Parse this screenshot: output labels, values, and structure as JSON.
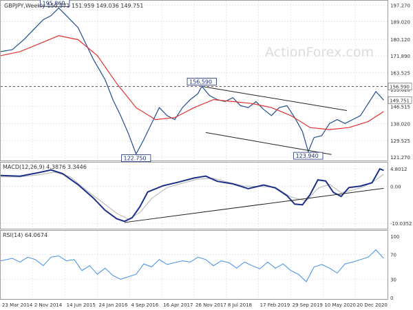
{
  "header": {
    "symbol_line": "GBPJPY,Weekly 150.371 151.959 149.036 149.751",
    "watermark": "ActionForex.com"
  },
  "colors": {
    "price": "#1f4e8c",
    "ma": "#e03030",
    "macd": "#1b2f88",
    "signal": "#bdbdbd",
    "rsi": "#3f8ee8",
    "grid": "#d7d7d7",
    "text": "#333333",
    "trend": "#222222"
  },
  "chart_data": [
    {
      "type": "line",
      "name": "price-panel",
      "title": "GBPJPY,Weekly 150.371 151.959 149.036 149.751",
      "y_ticks": [
        121.27,
        129.525,
        138.02,
        146.515,
        155.02,
        163.525,
        171.89,
        180.12,
        189.02,
        197.27
      ],
      "ylim": [
        119.5,
        199.5
      ],
      "dashed_level": 156.59,
      "last_price": 149.751,
      "annotations": [
        {
          "label": "195.860",
          "value": 195.86,
          "t": 0.14
        },
        {
          "label": "122.750",
          "value": 122.75,
          "t": 0.35
        },
        {
          "label": "156.590",
          "value": 156.59,
          "t": 0.52
        },
        {
          "label": "123.940",
          "value": 123.94,
          "t": 0.795
        }
      ],
      "axis_labels": [
        "156.590",
        "149.751"
      ],
      "price_path": [
        [
          0.0,
          174
        ],
        [
          0.03,
          175
        ],
        [
          0.06,
          180
        ],
        [
          0.09,
          186
        ],
        [
          0.11,
          190
        ],
        [
          0.13,
          192
        ],
        [
          0.15,
          195.86
        ],
        [
          0.17,
          192
        ],
        [
          0.2,
          186
        ],
        [
          0.22,
          178
        ],
        [
          0.24,
          170
        ],
        [
          0.27,
          160
        ],
        [
          0.29,
          150
        ],
        [
          0.31,
          142
        ],
        [
          0.33,
          133
        ],
        [
          0.35,
          122.75
        ],
        [
          0.37,
          130
        ],
        [
          0.39,
          138
        ],
        [
          0.41,
          146
        ],
        [
          0.43,
          142
        ],
        [
          0.45,
          140
        ],
        [
          0.47,
          146
        ],
        [
          0.49,
          150
        ],
        [
          0.51,
          153
        ],
        [
          0.52,
          156.59
        ],
        [
          0.54,
          152
        ],
        [
          0.56,
          150
        ],
        [
          0.58,
          149
        ],
        [
          0.6,
          151
        ],
        [
          0.62,
          147
        ],
        [
          0.64,
          146
        ],
        [
          0.66,
          149
        ],
        [
          0.68,
          145
        ],
        [
          0.7,
          142
        ],
        [
          0.72,
          146
        ],
        [
          0.74,
          147
        ],
        [
          0.76,
          141
        ],
        [
          0.78,
          134
        ],
        [
          0.795,
          123.94
        ],
        [
          0.81,
          131
        ],
        [
          0.83,
          132
        ],
        [
          0.85,
          138
        ],
        [
          0.87,
          140
        ],
        [
          0.89,
          138
        ],
        [
          0.91,
          140
        ],
        [
          0.93,
          142
        ],
        [
          0.95,
          148
        ],
        [
          0.97,
          154
        ],
        [
          0.99,
          149.751
        ]
      ],
      "ma_path": [
        [
          0.0,
          172
        ],
        [
          0.05,
          174
        ],
        [
          0.1,
          178
        ],
        [
          0.15,
          182
        ],
        [
          0.2,
          180
        ],
        [
          0.25,
          172
        ],
        [
          0.3,
          158
        ],
        [
          0.35,
          146
        ],
        [
          0.4,
          140
        ],
        [
          0.45,
          141
        ],
        [
          0.5,
          146
        ],
        [
          0.55,
          150
        ],
        [
          0.6,
          149
        ],
        [
          0.65,
          148
        ],
        [
          0.7,
          146
        ],
        [
          0.75,
          142
        ],
        [
          0.8,
          136
        ],
        [
          0.85,
          135
        ],
        [
          0.9,
          136
        ],
        [
          0.95,
          139
        ],
        [
          0.99,
          144
        ]
      ],
      "trendlines": [
        {
          "from": [
            0.52,
            156.59
          ],
          "to": [
            0.895,
            144.5
          ]
        },
        {
          "from": [
            0.53,
            133.5
          ],
          "to": [
            0.855,
            122.5
          ]
        }
      ]
    },
    {
      "type": "line",
      "name": "macd-panel",
      "title": "MACD(12,26,9) 4.3876 3.3446",
      "y_ticks": [
        4.8012,
        0.0,
        -10.0352
      ],
      "tick_labels": [
        "4.8012",
        "0.00",
        "-10.0352"
      ],
      "ylim": [
        -11.5,
        6.5
      ],
      "macd_path": [
        [
          0.0,
          3.0
        ],
        [
          0.05,
          2.8
        ],
        [
          0.1,
          3.8
        ],
        [
          0.13,
          4.5
        ],
        [
          0.16,
          3.5
        ],
        [
          0.2,
          0.5
        ],
        [
          0.24,
          -3.2
        ],
        [
          0.27,
          -6.5
        ],
        [
          0.3,
          -8.8
        ],
        [
          0.32,
          -9.5
        ],
        [
          0.34,
          -8.5
        ],
        [
          0.36,
          -5.5
        ],
        [
          0.38,
          -1.5
        ],
        [
          0.42,
          0.2
        ],
        [
          0.46,
          1.2
        ],
        [
          0.5,
          2.3
        ],
        [
          0.53,
          2.8
        ],
        [
          0.56,
          1.4
        ],
        [
          0.6,
          0.7
        ],
        [
          0.64,
          -0.6
        ],
        [
          0.68,
          0.4
        ],
        [
          0.71,
          -0.4
        ],
        [
          0.74,
          -2.5
        ],
        [
          0.76,
          -4.8
        ],
        [
          0.78,
          -5.0
        ],
        [
          0.8,
          -2.2
        ],
        [
          0.82,
          1.8
        ],
        [
          0.84,
          1.5
        ],
        [
          0.86,
          -1.6
        ],
        [
          0.88,
          -2.7
        ],
        [
          0.9,
          -0.3
        ],
        [
          0.93,
          0.1
        ],
        [
          0.96,
          1.0
        ],
        [
          0.98,
          4.8
        ],
        [
          0.99,
          4.3876
        ]
      ],
      "signal_path": [
        [
          0.0,
          2.6
        ],
        [
          0.05,
          2.6
        ],
        [
          0.1,
          3.2
        ],
        [
          0.14,
          3.9
        ],
        [
          0.18,
          2.6
        ],
        [
          0.22,
          -0.9
        ],
        [
          0.26,
          -4.1
        ],
        [
          0.3,
          -7.3
        ],
        [
          0.33,
          -8.9
        ],
        [
          0.36,
          -7.1
        ],
        [
          0.39,
          -3.3
        ],
        [
          0.43,
          -0.3
        ],
        [
          0.47,
          0.9
        ],
        [
          0.51,
          2.0
        ],
        [
          0.55,
          2.2
        ],
        [
          0.59,
          1.1
        ],
        [
          0.63,
          0.1
        ],
        [
          0.67,
          0.0
        ],
        [
          0.71,
          -0.2
        ],
        [
          0.75,
          -2.9
        ],
        [
          0.79,
          -3.9
        ],
        [
          0.82,
          -0.5
        ],
        [
          0.85,
          0.6
        ],
        [
          0.88,
          -1.7
        ],
        [
          0.91,
          -1.0
        ],
        [
          0.94,
          0.0
        ],
        [
          0.97,
          1.8
        ],
        [
          0.99,
          3.3446
        ]
      ],
      "trendlines": [
        {
          "from": [
            0.32,
            -9.8
          ],
          "to": [
            0.99,
            -0.5
          ]
        }
      ]
    },
    {
      "type": "line",
      "name": "rsi-panel",
      "title": "RSI(14) 64.0674",
      "y_ticks": [
        100,
        70,
        30,
        0
      ],
      "tick_labels": [
        "100",
        "70",
        "30",
        "0"
      ],
      "ylim": [
        0,
        100
      ],
      "rsi_path": [
        [
          0.0,
          60
        ],
        [
          0.03,
          64
        ],
        [
          0.05,
          58
        ],
        [
          0.07,
          66
        ],
        [
          0.09,
          62
        ],
        [
          0.11,
          52
        ],
        [
          0.13,
          66
        ],
        [
          0.15,
          68
        ],
        [
          0.17,
          60
        ],
        [
          0.19,
          62
        ],
        [
          0.21,
          44
        ],
        [
          0.23,
          52
        ],
        [
          0.25,
          38
        ],
        [
          0.27,
          48
        ],
        [
          0.29,
          36
        ],
        [
          0.31,
          30
        ],
        [
          0.33,
          34
        ],
        [
          0.35,
          38
        ],
        [
          0.37,
          55
        ],
        [
          0.39,
          50
        ],
        [
          0.41,
          62
        ],
        [
          0.43,
          54
        ],
        [
          0.45,
          57
        ],
        [
          0.47,
          60
        ],
        [
          0.49,
          58
        ],
        [
          0.51,
          66
        ],
        [
          0.53,
          62
        ],
        [
          0.55,
          52
        ],
        [
          0.57,
          60
        ],
        [
          0.59,
          57
        ],
        [
          0.61,
          48
        ],
        [
          0.63,
          58
        ],
        [
          0.65,
          52
        ],
        [
          0.67,
          47
        ],
        [
          0.69,
          58
        ],
        [
          0.71,
          48
        ],
        [
          0.73,
          55
        ],
        [
          0.75,
          44
        ],
        [
          0.77,
          38
        ],
        [
          0.79,
          26
        ],
        [
          0.81,
          50
        ],
        [
          0.83,
          54
        ],
        [
          0.85,
          48
        ],
        [
          0.87,
          40
        ],
        [
          0.89,
          55
        ],
        [
          0.91,
          58
        ],
        [
          0.93,
          62
        ],
        [
          0.95,
          66
        ],
        [
          0.97,
          78
        ],
        [
          0.99,
          64.0674
        ]
      ]
    }
  ],
  "x_axis": {
    "labels": [
      "23 Mar 2014",
      "2 Nov 2014",
      "14 Jun 2015",
      "24 Jan 2016",
      "4 Sep 2016",
      "16 Apr 2017",
      "26 Nov 2017",
      "8 Jul 2018",
      "17 Feb 2019",
      "29 Sep 2019",
      "10 May 2020",
      "20 Dec 2020"
    ],
    "positions": [
      0.0,
      0.0833,
      0.1667,
      0.25,
      0.3333,
      0.4167,
      0.5,
      0.5833,
      0.6667,
      0.75,
      0.8333,
      0.9167
    ]
  }
}
